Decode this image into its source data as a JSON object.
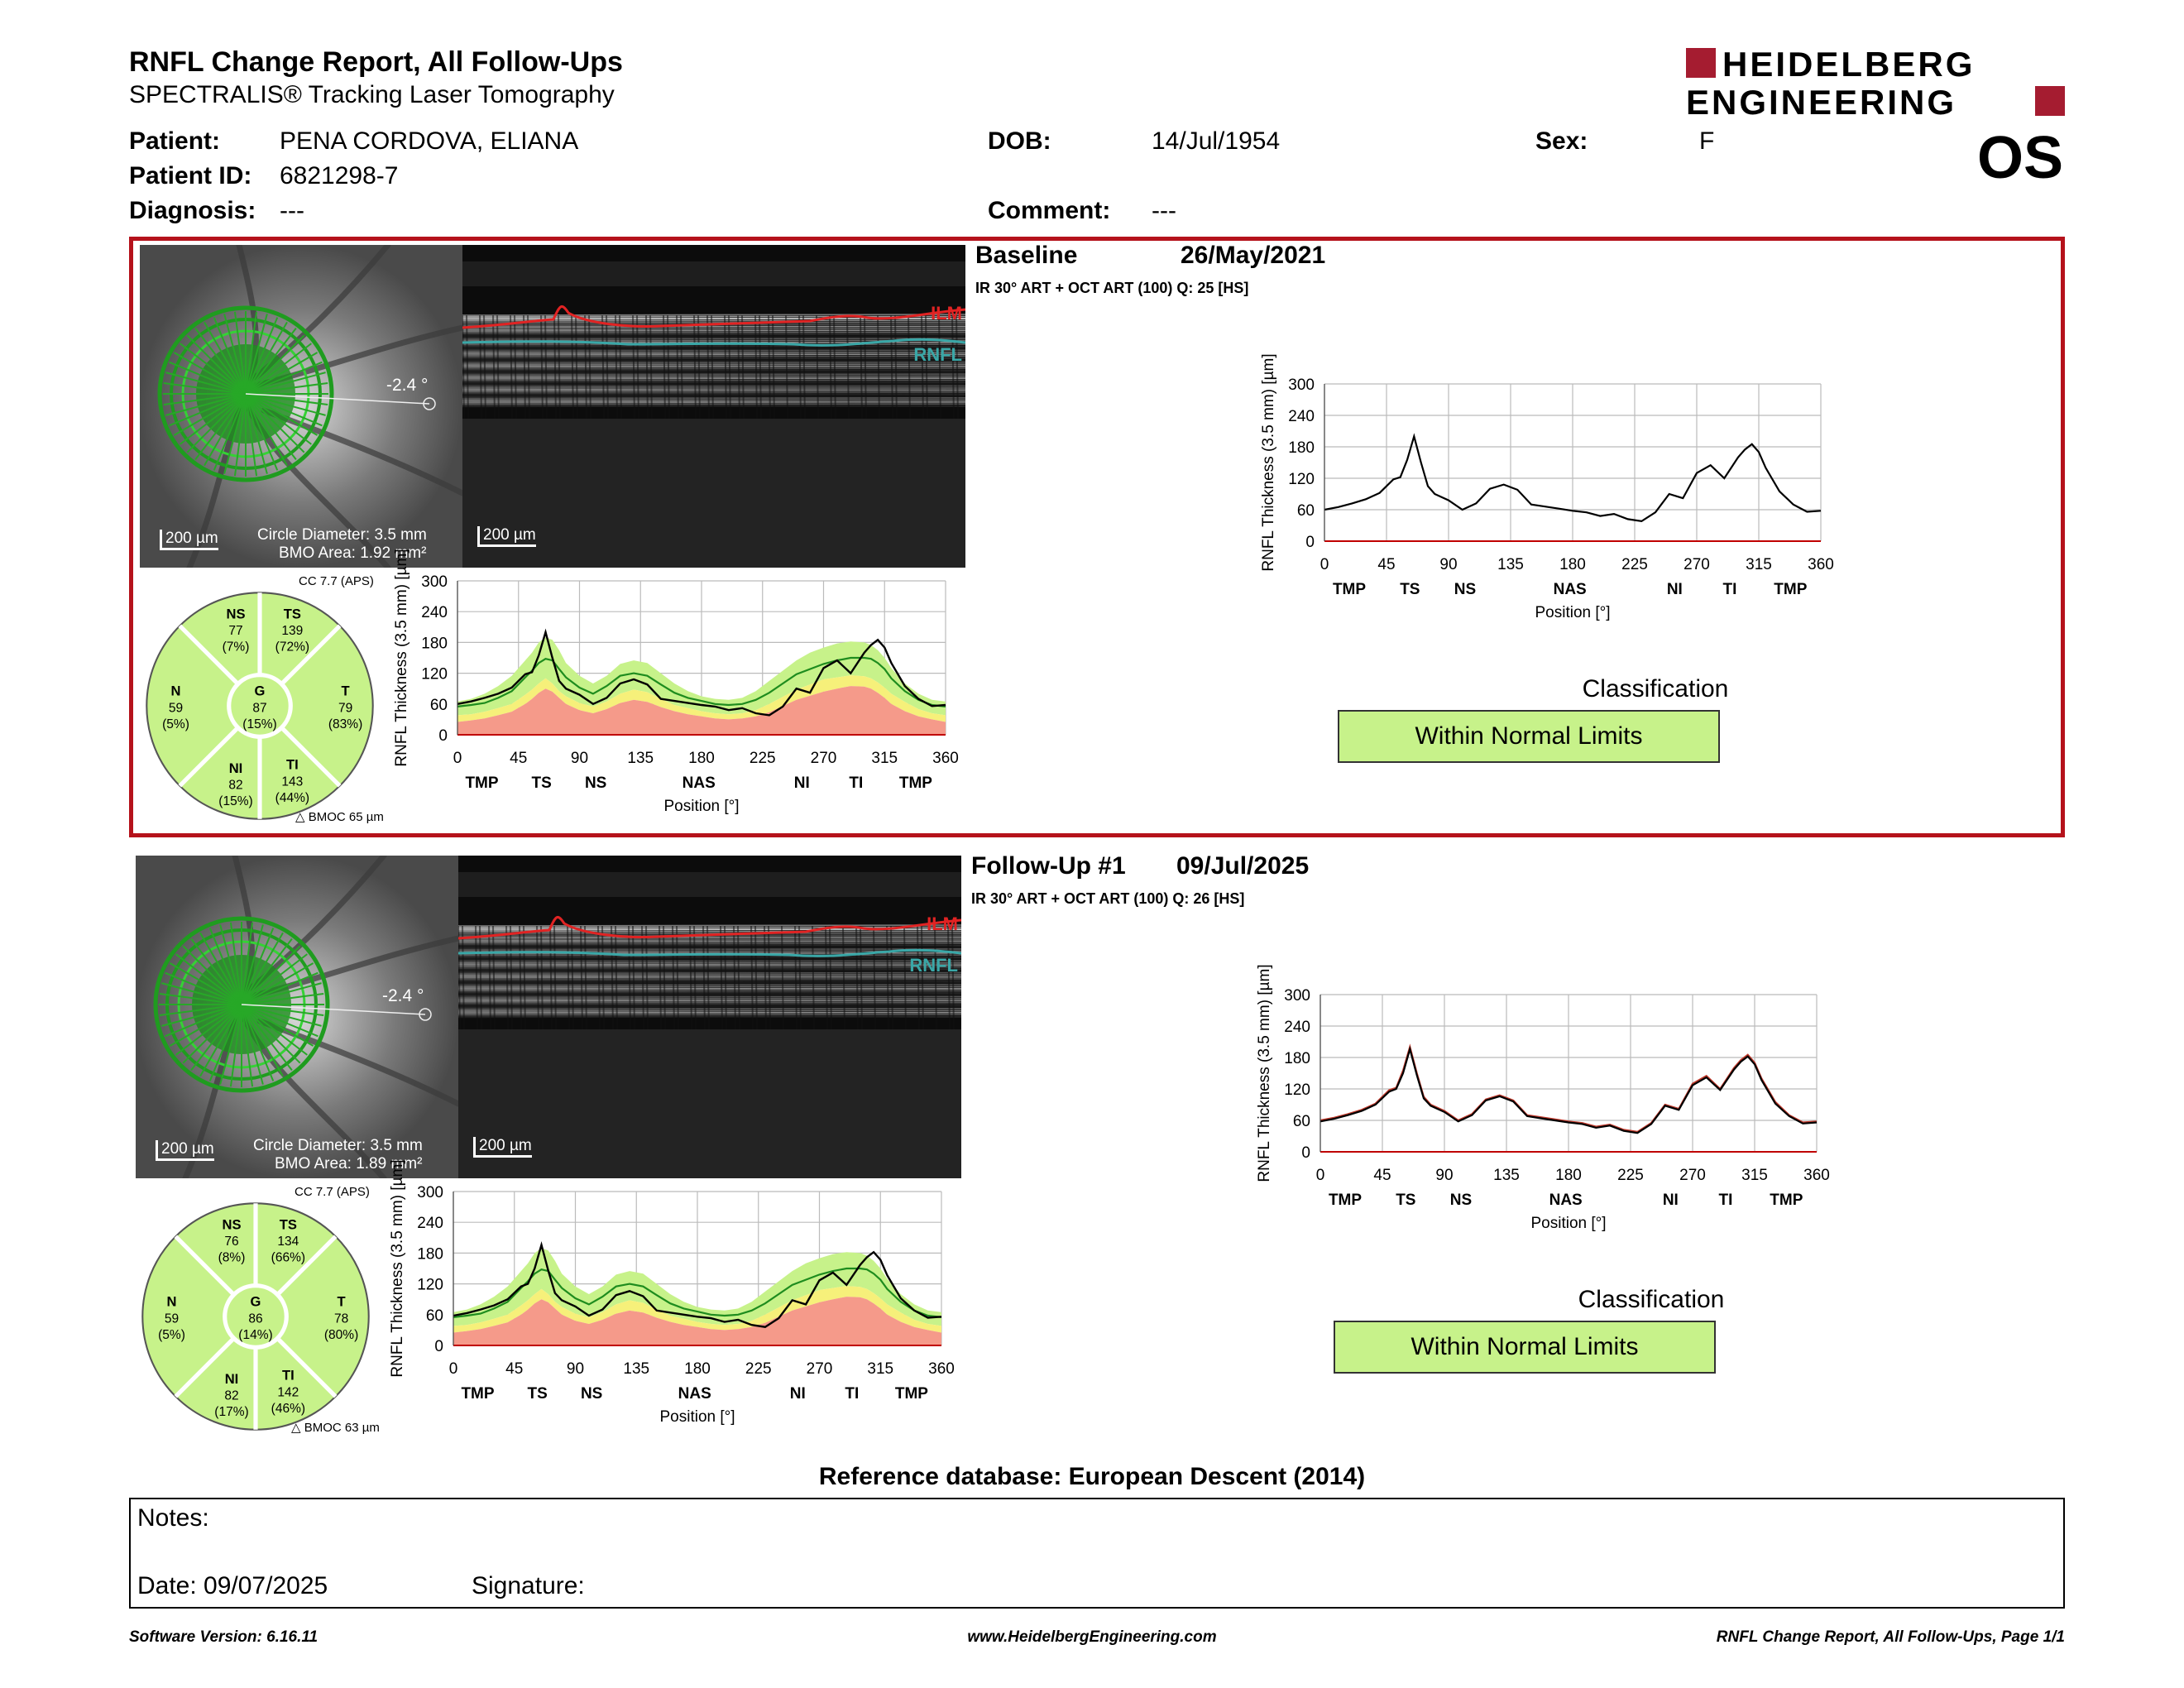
{
  "header": {
    "title": "RNFL Change Report, All Follow-Ups",
    "subtitle": "SPECTRALIS® Tracking Laser Tomography",
    "logo_line1": "HEIDELBERG",
    "logo_line2": "ENGINEERING",
    "eye": "OS"
  },
  "patient": {
    "patient_label": "Patient:",
    "patient_value": "PENA CORDOVA, ELIANA",
    "id_label": "Patient ID:",
    "id_value": "6821298-7",
    "diagnosis_label": "Diagnosis:",
    "diagnosis_value": "---",
    "dob_label": "DOB:",
    "dob_value": "14/Jul/1954",
    "comment_label": "Comment:",
    "comment_value": "---",
    "sex_label": "Sex:",
    "sex_value": "F"
  },
  "colors": {
    "frame": "#b5121b",
    "normal": "#c7f28a",
    "borderline": "#f6f07a",
    "outside": "#f59a8a",
    "profile": "#000000",
    "mean_line": "#1e8c1e"
  },
  "sectors_labels": {
    "NS": "NS",
    "TS": "TS",
    "N": "N",
    "G": "G",
    "T": "T",
    "NI": "NI",
    "TI": "TI",
    "cc": "CC 7.7 (APS)",
    "angle": "-2.4 °",
    "scale_fundus": "200 µm",
    "scale_bscan": "200 µm",
    "ilm": "ILM",
    "rnfl": "RNFL",
    "circle_diameter": "Circle Diameter: 3.5 mm"
  },
  "scans": [
    {
      "heading": "Baseline",
      "date": "26/May/2021",
      "acq": "IR 30° ART + OCT ART (100) Q: 25 [HS]",
      "bmo_area": "BMO Area: 1.92 mm²",
      "bmoc": "BMOC 65 µm",
      "sectors": {
        "NS": {
          "value": "77",
          "pct": "(7%)"
        },
        "TS": {
          "value": "139",
          "pct": "(72%)"
        },
        "N": {
          "value": "59",
          "pct": "(5%)"
        },
        "G": {
          "value": "87",
          "pct": "(15%)"
        },
        "T": {
          "value": "79",
          "pct": "(83%)"
        },
        "NI": {
          "value": "82",
          "pct": "(15%)"
        },
        "TI": {
          "value": "143",
          "pct": "(44%)"
        }
      },
      "classification_label": "Classification",
      "classification": "Within Normal Limits"
    },
    {
      "heading": "Follow-Up #1",
      "date": "09/Jul/2025",
      "acq": "IR 30° ART + OCT ART (100) Q: 26 [HS]",
      "bmo_area": "BMO Area: 1.89 mm²",
      "bmoc": "BMOC 63 µm",
      "sectors": {
        "NS": {
          "value": "76",
          "pct": "(8%)"
        },
        "TS": {
          "value": "134",
          "pct": "(66%)"
        },
        "N": {
          "value": "59",
          "pct": "(5%)"
        },
        "G": {
          "value": "86",
          "pct": "(14%)"
        },
        "T": {
          "value": "78",
          "pct": "(80%)"
        },
        "NI": {
          "value": "82",
          "pct": "(17%)"
        },
        "TI": {
          "value": "142",
          "pct": "(46%)"
        }
      },
      "classification_label": "Classification",
      "classification": "Within Normal Limits"
    }
  ],
  "chart_data": [
    {
      "type": "line",
      "ylabel": "RNFL Thickness (3.5 mm) [µm]",
      "xlabel": "Position [°]",
      "xlim": [
        0,
        360
      ],
      "ylim": [
        0,
        300
      ],
      "xticks": [
        0,
        45,
        90,
        135,
        180,
        225,
        270,
        315,
        360
      ],
      "yticks": [
        0,
        60,
        120,
        180,
        240,
        300
      ],
      "region_labels": [
        {
          "x": 18,
          "label": "TMP"
        },
        {
          "x": 62,
          "label": "TS"
        },
        {
          "x": 102,
          "label": "NS"
        },
        {
          "x": 178,
          "label": "NAS"
        },
        {
          "x": 254,
          "label": "NI"
        },
        {
          "x": 294,
          "label": "TI"
        },
        {
          "x": 338,
          "label": "TMP"
        }
      ],
      "x": [
        0,
        10,
        20,
        30,
        40,
        50,
        55,
        60,
        65,
        70,
        75,
        80,
        90,
        100,
        110,
        120,
        130,
        140,
        150,
        160,
        170,
        180,
        190,
        200,
        210,
        220,
        230,
        240,
        250,
        260,
        270,
        280,
        290,
        300,
        305,
        310,
        315,
        320,
        330,
        340,
        350,
        360
      ],
      "series": [
        {
          "values": [
            60,
            65,
            72,
            80,
            92,
            118,
            122,
            155,
            200,
            150,
            105,
            90,
            78,
            60,
            72,
            100,
            108,
            98,
            70,
            66,
            62,
            58,
            55,
            48,
            52,
            42,
            38,
            55,
            90,
            82,
            130,
            145,
            120,
            160,
            175,
            185,
            170,
            140,
            95,
            70,
            56,
            58
          ]
        }
      ],
      "normal_band": {
        "lower": [
          40,
          42,
          48,
          55,
          65,
          85,
          95,
          110,
          120,
          110,
          92,
          80,
          68,
          60,
          72,
          88,
          95,
          90,
          75,
          62,
          55,
          50,
          45,
          42,
          45,
          52,
          65,
          80,
          95,
          105,
          115,
          120,
          125,
          122,
          118,
          110,
          100,
          88,
          70,
          55,
          45,
          40
        ],
        "upper": [
          65,
          70,
          80,
          95,
          115,
          145,
          160,
          180,
          190,
          185,
          165,
          140,
          115,
          100,
          115,
          138,
          145,
          140,
          120,
          100,
          85,
          75,
          70,
          68,
          72,
          85,
          105,
          125,
          145,
          160,
          170,
          178,
          182,
          180,
          175,
          165,
          150,
          130,
          100,
          80,
          68,
          65
        ],
        "borderline_upper": [
          38,
          40,
          45,
          52,
          60,
          78,
          88,
          100,
          110,
          100,
          85,
          75,
          62,
          55,
          65,
          80,
          88,
          83,
          70,
          58,
          52,
          46,
          42,
          40,
          42,
          48,
          60,
          74,
          88,
          98,
          108,
          112,
          116,
          114,
          110,
          102,
          92,
          80,
          64,
          50,
          42,
          38
        ],
        "outside_upper": [
          25,
          28,
          32,
          38,
          45,
          60,
          70,
          82,
          90,
          84,
          72,
          60,
          48,
          42,
          50,
          62,
          68,
          64,
          54,
          46,
          40,
          36,
          32,
          30,
          32,
          36,
          44,
          56,
          68,
          76,
          84,
          90,
          95,
          94,
          90,
          82,
          72,
          60,
          46,
          36,
          30,
          25
        ]
      },
      "mean": [
        55,
        58,
        62,
        72,
        85,
        112,
        125,
        140,
        148,
        145,
        128,
        112,
        92,
        80,
        95,
        115,
        120,
        115,
        98,
        82,
        72,
        66,
        60,
        58,
        60,
        68,
        82,
        100,
        118,
        128,
        138,
        145,
        150,
        150,
        148,
        140,
        128,
        110,
        85,
        68,
        58,
        55
      ]
    },
    {
      "type": "line",
      "ylabel": "RNFL Thickness (3.5 mm) [µm]",
      "xlabel": "Position [°]",
      "xlim": [
        0,
        360
      ],
      "ylim": [
        0,
        300
      ],
      "xticks": [
        0,
        45,
        90,
        135,
        180,
        225,
        270,
        315,
        360
      ],
      "yticks": [
        0,
        60,
        120,
        180,
        240,
        300
      ],
      "x": [
        0,
        10,
        20,
        30,
        40,
        50,
        55,
        60,
        65,
        70,
        75,
        80,
        90,
        100,
        110,
        120,
        130,
        140,
        150,
        160,
        170,
        180,
        190,
        200,
        210,
        220,
        230,
        240,
        250,
        260,
        270,
        280,
        290,
        300,
        305,
        310,
        315,
        320,
        330,
        340,
        350,
        360
      ],
      "series": [
        {
          "values": [
            60,
            65,
            72,
            80,
            92,
            118,
            122,
            155,
            200,
            150,
            105,
            90,
            78,
            60,
            72,
            100,
            108,
            98,
            70,
            66,
            62,
            58,
            55,
            48,
            52,
            42,
            38,
            55,
            90,
            82,
            130,
            145,
            120,
            160,
            175,
            185,
            170,
            140,
            95,
            70,
            56,
            58
          ]
        }
      ]
    },
    {
      "type": "line",
      "ylabel": "RNFL Thickness (3.5 mm) [µm]",
      "xlabel": "Position [°]",
      "xlim": [
        0,
        360
      ],
      "ylim": [
        0,
        300
      ],
      "xticks": [
        0,
        45,
        90,
        135,
        180,
        225,
        270,
        315,
        360
      ],
      "yticks": [
        0,
        60,
        120,
        180,
        240,
        300
      ],
      "region_labels": [
        {
          "x": 18,
          "label": "TMP"
        },
        {
          "x": 62,
          "label": "TS"
        },
        {
          "x": 102,
          "label": "NS"
        },
        {
          "x": 178,
          "label": "NAS"
        },
        {
          "x": 254,
          "label": "NI"
        },
        {
          "x": 294,
          "label": "TI"
        },
        {
          "x": 338,
          "label": "TMP"
        }
      ],
      "x": [
        0,
        10,
        20,
        30,
        40,
        50,
        55,
        60,
        65,
        70,
        75,
        80,
        90,
        100,
        110,
        120,
        130,
        140,
        150,
        160,
        170,
        180,
        190,
        200,
        210,
        220,
        230,
        240,
        250,
        260,
        270,
        280,
        290,
        300,
        305,
        310,
        315,
        320,
        330,
        340,
        350,
        360
      ],
      "series": [
        {
          "values": [
            58,
            63,
            70,
            78,
            90,
            115,
            120,
            150,
            196,
            146,
            102,
            88,
            76,
            58,
            70,
            98,
            106,
            96,
            68,
            64,
            60,
            56,
            53,
            46,
            50,
            40,
            36,
            53,
            88,
            80,
            127,
            142,
            118,
            157,
            172,
            182,
            167,
            137,
            92,
            68,
            54,
            56
          ]
        }
      ],
      "normal_band": {
        "lower": [
          40,
          42,
          48,
          55,
          65,
          85,
          95,
          110,
          120,
          110,
          92,
          80,
          68,
          60,
          72,
          88,
          95,
          90,
          75,
          62,
          55,
          50,
          45,
          42,
          45,
          52,
          65,
          80,
          95,
          105,
          115,
          120,
          125,
          122,
          118,
          110,
          100,
          88,
          70,
          55,
          45,
          40
        ],
        "upper": [
          65,
          70,
          80,
          95,
          115,
          145,
          160,
          180,
          190,
          185,
          165,
          140,
          115,
          100,
          115,
          138,
          145,
          140,
          120,
          100,
          85,
          75,
          70,
          68,
          72,
          85,
          105,
          125,
          145,
          160,
          170,
          178,
          182,
          180,
          175,
          165,
          150,
          130,
          100,
          80,
          68,
          65
        ],
        "borderline_upper": [
          38,
          40,
          45,
          52,
          60,
          78,
          88,
          100,
          110,
          100,
          85,
          75,
          62,
          55,
          65,
          80,
          88,
          83,
          70,
          58,
          52,
          46,
          42,
          40,
          42,
          48,
          60,
          74,
          88,
          98,
          108,
          112,
          116,
          114,
          110,
          102,
          92,
          80,
          64,
          50,
          42,
          38
        ],
        "outside_upper": [
          25,
          28,
          32,
          38,
          45,
          60,
          70,
          82,
          90,
          84,
          72,
          60,
          48,
          42,
          50,
          62,
          68,
          64,
          54,
          46,
          40,
          36,
          32,
          30,
          32,
          36,
          44,
          56,
          68,
          76,
          84,
          90,
          95,
          94,
          90,
          82,
          72,
          60,
          46,
          36,
          30,
          25
        ]
      },
      "mean": [
        55,
        58,
        62,
        72,
        85,
        112,
        125,
        140,
        148,
        145,
        128,
        112,
        92,
        80,
        95,
        115,
        120,
        115,
        98,
        82,
        72,
        66,
        60,
        58,
        60,
        68,
        82,
        100,
        118,
        128,
        138,
        145,
        150,
        150,
        148,
        140,
        128,
        110,
        85,
        68,
        58,
        55
      ]
    },
    {
      "type": "line",
      "ylabel": "RNFL Thickness (3.5 mm) [µm]",
      "xlabel": "Position [°]",
      "xlim": [
        0,
        360
      ],
      "ylim": [
        0,
        300
      ],
      "xticks": [
        0,
        45,
        90,
        135,
        180,
        225,
        270,
        315,
        360
      ],
      "yticks": [
        0,
        60,
        120,
        180,
        240,
        300
      ],
      "x": [
        0,
        10,
        20,
        30,
        40,
        50,
        55,
        60,
        65,
        70,
        75,
        80,
        90,
        100,
        110,
        120,
        130,
        140,
        150,
        160,
        170,
        180,
        190,
        200,
        210,
        220,
        230,
        240,
        250,
        260,
        270,
        280,
        290,
        300,
        305,
        310,
        315,
        320,
        330,
        340,
        350,
        360
      ],
      "series": [
        {
          "values": [
            60,
            65,
            72,
            80,
            92,
            118,
            122,
            155,
            200,
            150,
            105,
            90,
            78,
            60,
            72,
            100,
            108,
            98,
            70,
            66,
            62,
            58,
            55,
            48,
            52,
            42,
            38,
            55,
            90,
            82,
            130,
            145,
            120,
            160,
            175,
            185,
            170,
            140,
            95,
            70,
            56,
            58
          ]
        },
        {
          "values": [
            58,
            63,
            70,
            78,
            90,
            115,
            120,
            150,
            196,
            146,
            102,
            88,
            76,
            58,
            70,
            98,
            106,
            96,
            68,
            64,
            60,
            56,
            53,
            46,
            50,
            40,
            36,
            53,
            88,
            80,
            127,
            142,
            118,
            157,
            172,
            182,
            167,
            137,
            92,
            68,
            54,
            56
          ]
        }
      ]
    }
  ],
  "footer": {
    "refdb": "Reference database: European Descent (2014)",
    "notes_label": "Notes:",
    "date_label": "Date: 09/07/2025",
    "signature_label": "Signature:",
    "software": "Software Version: 6.16.11",
    "website": "www.HeidelbergEngineering.com",
    "page": "RNFL Change Report, All Follow-Ups, Page 1/1"
  }
}
